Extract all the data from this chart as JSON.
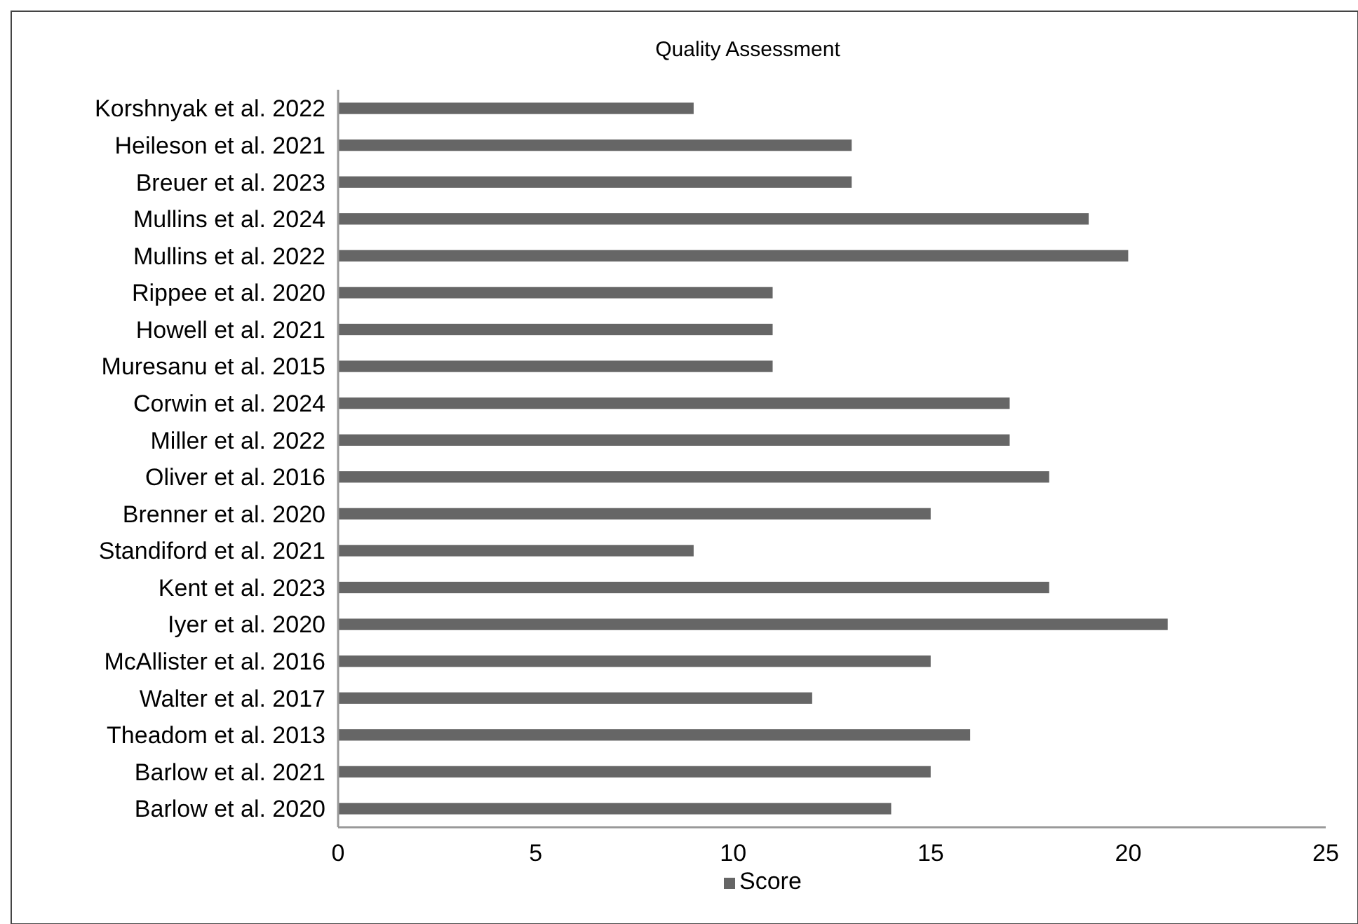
{
  "chart_data": {
    "type": "bar",
    "orientation": "horizontal",
    "title": "Quality Assessment",
    "categories": [
      "Korshnyak et al. 2022",
      "Heileson et al. 2021",
      "Breuer et al. 2023",
      "Mullins et al. 2024",
      "Mullins et al. 2022",
      "Rippee et al. 2020",
      "Howell et al. 2021",
      "Muresanu et al. 2015",
      "Corwin et al. 2024",
      "Miller et al. 2022",
      "Oliver et al. 2016",
      "Brenner et al. 2020",
      "Standiford et al. 2021",
      "Kent et al. 2023",
      "Iyer et al. 2020",
      "McAllister et al. 2016",
      "Walter et al. 2017",
      "Theadom et al. 2013",
      "Barlow et al. 2021",
      "Barlow et al. 2020"
    ],
    "series": [
      {
        "name": "Score",
        "color": "#666666",
        "values": [
          9,
          13,
          13,
          19,
          20,
          11,
          11,
          11,
          17,
          17,
          18,
          15,
          9,
          18,
          21,
          15,
          12,
          16,
          15,
          14
        ]
      }
    ],
    "xlim": [
      0,
      25
    ],
    "xticks": [
      0,
      5,
      10,
      15,
      20,
      25
    ],
    "grid": false,
    "legend": "bottom"
  }
}
